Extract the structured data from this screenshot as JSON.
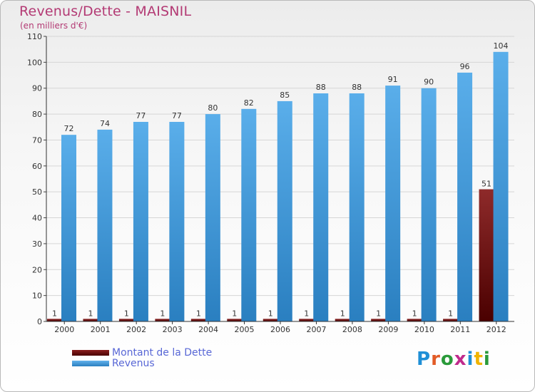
{
  "title": "Revenus/Dette - MAISNIL",
  "subtitle": "(en milliers d'€)",
  "legend": {
    "debt_label": "Montant de la Dette",
    "revenue_label": "Revenus"
  },
  "logo_text": "Proxiti",
  "colors": {
    "title": "#b33a74",
    "revenue": "#4fa3e2",
    "revenue_dark": "#2a7fc0",
    "debt": "#6b0d0d",
    "debt_dark": "#3c0000",
    "legend_text": "#5867d6"
  },
  "chart_data": {
    "type": "bar",
    "categories": [
      "2000",
      "2001",
      "2002",
      "2003",
      "2004",
      "2005",
      "2006",
      "2007",
      "2008",
      "2009",
      "2010",
      "2011",
      "2012"
    ],
    "series": [
      {
        "name": "Montant de la Dette",
        "values": [
          1,
          1,
          1,
          1,
          1,
          1,
          1,
          1,
          1,
          1,
          1,
          1,
          51
        ]
      },
      {
        "name": "Revenus",
        "values": [
          72,
          74,
          77,
          77,
          80,
          82,
          85,
          88,
          88,
          91,
          90,
          96,
          104
        ]
      }
    ],
    "ylim": [
      0,
      110
    ],
    "yticks": [
      0,
      10,
      20,
      30,
      40,
      50,
      60,
      70,
      80,
      90,
      100,
      110
    ],
    "grid": true,
    "legend_position": "bottom-left"
  }
}
